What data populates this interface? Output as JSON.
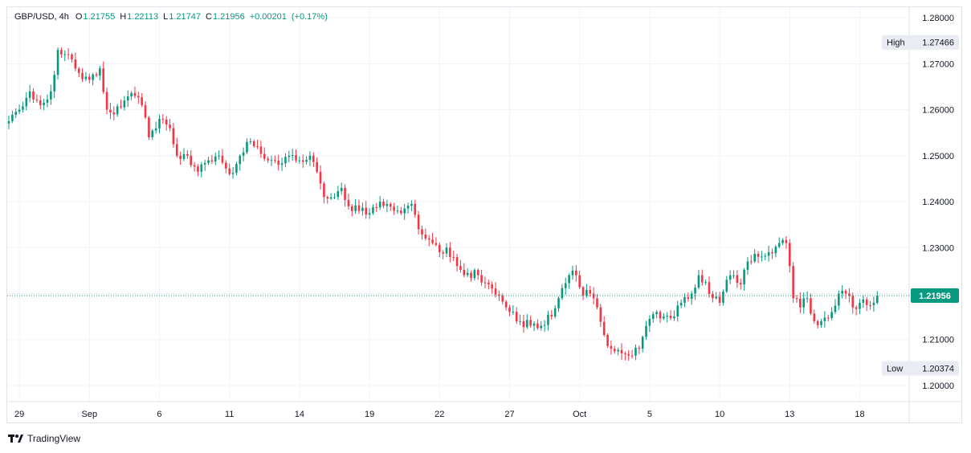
{
  "legend": {
    "symbol": "GBP/USD, 4h",
    "open_label": "O",
    "open": "1.21755",
    "high_label": "H",
    "high": "1.22113",
    "low_label": "L",
    "low": "1.21747",
    "close_label": "C",
    "close": "1.21956",
    "change": "+0.00201",
    "change_pct": "(+0.17%)"
  },
  "branding": {
    "name": "TradingView",
    "icon": "tradingview-logo-icon"
  },
  "colors": {
    "up": "#089981",
    "down": "#f23645",
    "grid": "#f0f3fa",
    "axis_text": "#131722",
    "badge_bg": "#e9ecf2"
  },
  "chart_data": {
    "type": "candlestick",
    "ylim": [
      1.1965,
      1.2823
    ],
    "y_ticks": [
      "1.28000",
      "1.27000",
      "1.26000",
      "1.25000",
      "1.24000",
      "1.23000",
      "1.22000",
      "1.21000",
      "1.20000"
    ],
    "y_tick_values": [
      1.28,
      1.27,
      1.26,
      1.25,
      1.24,
      1.23,
      1.22,
      1.21,
      1.2
    ],
    "x_ticks": [
      {
        "label": "29",
        "bar": 3
      },
      {
        "label": "Sep",
        "bar": 23
      },
      {
        "label": "6",
        "bar": 43
      },
      {
        "label": "11",
        "bar": 63
      },
      {
        "label": "14",
        "bar": 83
      },
      {
        "label": "19",
        "bar": 103
      },
      {
        "label": "22",
        "bar": 123
      },
      {
        "label": "27",
        "bar": 143
      },
      {
        "label": "Oct",
        "bar": 163
      },
      {
        "label": "5",
        "bar": 183
      },
      {
        "label": "10",
        "bar": 203
      },
      {
        "label": "13",
        "bar": 223
      },
      {
        "label": "18",
        "bar": 243
      }
    ],
    "current_price": 1.21956,
    "current_label": "1.21956",
    "high_marker": {
      "label": "High",
      "value": 1.27466,
      "text": "1.27466"
    },
    "low_marker": {
      "label": "Low",
      "value": 1.20374,
      "text": "1.20374"
    },
    "anchors": [
      [
        0,
        1.2575
      ],
      [
        3,
        1.26
      ],
      [
        6,
        1.264
      ],
      [
        9,
        1.261
      ],
      [
        12,
        1.264
      ],
      [
        14,
        1.273
      ],
      [
        17,
        1.272
      ],
      [
        20,
        1.268
      ],
      [
        23,
        1.2665
      ],
      [
        26,
        1.269
      ],
      [
        28,
        1.26
      ],
      [
        30,
        1.259
      ],
      [
        33,
        1.262
      ],
      [
        36,
        1.263
      ],
      [
        38,
        1.261
      ],
      [
        40,
        1.254
      ],
      [
        43,
        1.258
      ],
      [
        46,
        1.256
      ],
      [
        48,
        1.25
      ],
      [
        51,
        1.25
      ],
      [
        54,
        1.2465
      ],
      [
        57,
        1.249
      ],
      [
        60,
        1.25
      ],
      [
        63,
        1.246
      ],
      [
        66,
        1.25
      ],
      [
        68,
        1.253
      ],
      [
        71,
        1.252
      ],
      [
        74,
        1.249
      ],
      [
        77,
        1.248
      ],
      [
        80,
        1.25
      ],
      [
        83,
        1.249
      ],
      [
        86,
        1.25
      ],
      [
        88,
        1.2465
      ],
      [
        90,
        1.241
      ],
      [
        93,
        1.241
      ],
      [
        95,
        1.243
      ],
      [
        97,
        1.239
      ],
      [
        100,
        1.238
      ],
      [
        103,
        1.2375
      ],
      [
        106,
        1.24
      ],
      [
        108,
        1.2395
      ],
      [
        110,
        1.238
      ],
      [
        113,
        1.2385
      ],
      [
        115,
        1.2395
      ],
      [
        117,
        1.234
      ],
      [
        119,
        1.232
      ],
      [
        121,
        1.231
      ],
      [
        123,
        1.229
      ],
      [
        125,
        1.23
      ],
      [
        128,
        1.226
      ],
      [
        131,
        1.2245
      ],
      [
        134,
        1.224
      ],
      [
        137,
        1.222
      ],
      [
        140,
        1.2195
      ],
      [
        143,
        1.216
      ],
      [
        146,
        1.214
      ],
      [
        149,
        1.213
      ],
      [
        152,
        1.213
      ],
      [
        155,
        1.215
      ],
      [
        157,
        1.219
      ],
      [
        160,
        1.224
      ],
      [
        162,
        1.224
      ],
      [
        164,
        1.2195
      ],
      [
        166,
        1.22
      ],
      [
        168,
        1.217
      ],
      [
        170,
        1.211
      ],
      [
        172,
        1.208
      ],
      [
        175,
        1.207
      ],
      [
        178,
        1.2065
      ],
      [
        180,
        1.208
      ],
      [
        182,
        1.213
      ],
      [
        185,
        1.216
      ],
      [
        187,
        1.215
      ],
      [
        190,
        1.215
      ],
      [
        192,
        1.218
      ],
      [
        195,
        1.22
      ],
      [
        197,
        1.224
      ],
      [
        199,
        1.2225
      ],
      [
        201,
        1.219
      ],
      [
        203,
        1.218
      ],
      [
        205,
        1.223
      ],
      [
        207,
        1.224
      ],
      [
        209,
        1.222
      ],
      [
        211,
        1.227
      ],
      [
        214,
        1.228
      ],
      [
        217,
        1.229
      ],
      [
        220,
        1.231
      ],
      [
        222,
        1.231
      ],
      [
        224,
        1.219
      ],
      [
        226,
        1.217
      ],
      [
        228,
        1.219
      ],
      [
        230,
        1.214
      ],
      [
        232,
        1.214
      ],
      [
        235,
        1.216
      ],
      [
        237,
        1.22
      ],
      [
        239,
        1.22
      ],
      [
        241,
        1.217
      ],
      [
        243,
        1.218
      ],
      [
        245,
        1.2175
      ],
      [
        247,
        1.218
      ],
      [
        248,
        1.2196
      ]
    ]
  }
}
